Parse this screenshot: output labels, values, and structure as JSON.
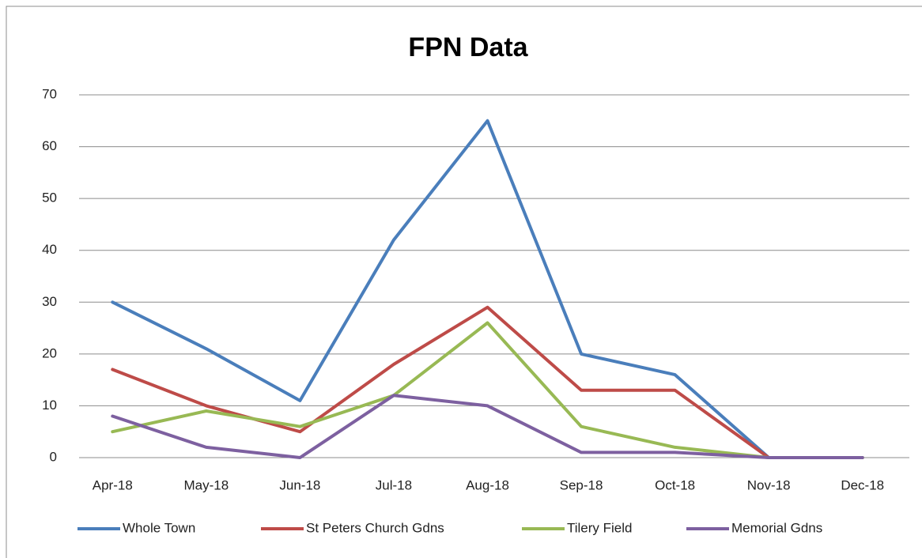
{
  "chart_data": {
    "type": "line",
    "title": "FPN Data",
    "categories": [
      "Apr-18",
      "May-18",
      "Jun-18",
      "Jul-18",
      "Aug-18",
      "Sep-18",
      "Oct-18",
      "Nov-18",
      "Dec-18"
    ],
    "series": [
      {
        "name": "Whole Town",
        "color": "#4a7ebb",
        "values": [
          30,
          21,
          11,
          42,
          65,
          20,
          16,
          0,
          0
        ]
      },
      {
        "name": "St Peters Church Gdns",
        "color": "#be4b48",
        "values": [
          17,
          10,
          5,
          18,
          29,
          13,
          13,
          0,
          0
        ]
      },
      {
        "name": "Tilery Field",
        "color": "#98b954",
        "values": [
          5,
          9,
          6,
          12,
          26,
          6,
          2,
          0,
          0
        ]
      },
      {
        "name": "Memorial Gdns",
        "color": "#7d60a0",
        "values": [
          8,
          2,
          0,
          12,
          10,
          1,
          1,
          0,
          0
        ]
      }
    ],
    "ylim": [
      0,
      70
    ],
    "yticks": [
      0,
      10,
      20,
      30,
      40,
      50,
      60,
      70
    ],
    "grid": true,
    "legend": "bottom"
  }
}
